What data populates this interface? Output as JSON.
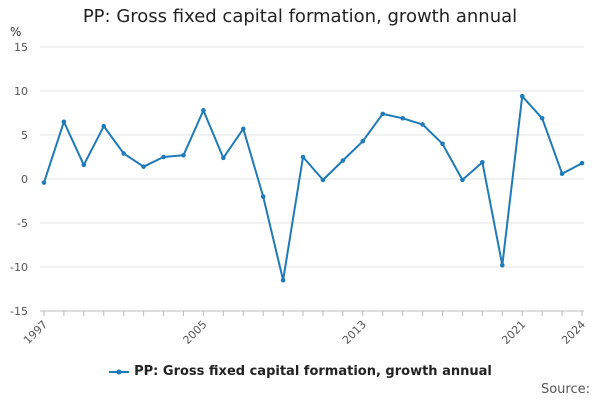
{
  "chart_data": {
    "type": "line",
    "title": "PP: Gross fixed capital formation, growth annual",
    "ylabel": "%",
    "xlabel": "",
    "ylim": [
      -15,
      15
    ],
    "yticks": [
      15,
      10,
      5,
      0,
      -5,
      -10,
      -15
    ],
    "ytick_labels": [
      "15",
      "10",
      "5",
      "0",
      "-5",
      "-10",
      "-15"
    ],
    "xtick_labels": [
      "1997",
      "2005",
      "2013",
      "2021",
      "2024"
    ],
    "series": [
      {
        "name": "PP: Gross fixed capital formation, growth annual",
        "color": "#1f7ab8",
        "x": [
          1997,
          1998,
          1999,
          2000,
          2001,
          2002,
          2003,
          2004,
          2005,
          2006,
          2007,
          2008,
          2009,
          2010,
          2011,
          2012,
          2013,
          2014,
          2015,
          2016,
          2017,
          2018,
          2019,
          2020,
          2021,
          2022,
          2023,
          2024
        ],
        "values": [
          -0.4,
          6.5,
          1.6,
          6.0,
          2.9,
          1.4,
          2.5,
          2.7,
          7.8,
          2.4,
          5.7,
          -2.0,
          -11.5,
          2.5,
          -0.1,
          2.1,
          4.3,
          7.4,
          6.9,
          6.2,
          4.0,
          -0.1,
          1.9,
          -9.8,
          9.4,
          6.9,
          0.6,
          1.8
        ]
      }
    ],
    "legend_position": "bottom",
    "source_label": "Source:"
  }
}
